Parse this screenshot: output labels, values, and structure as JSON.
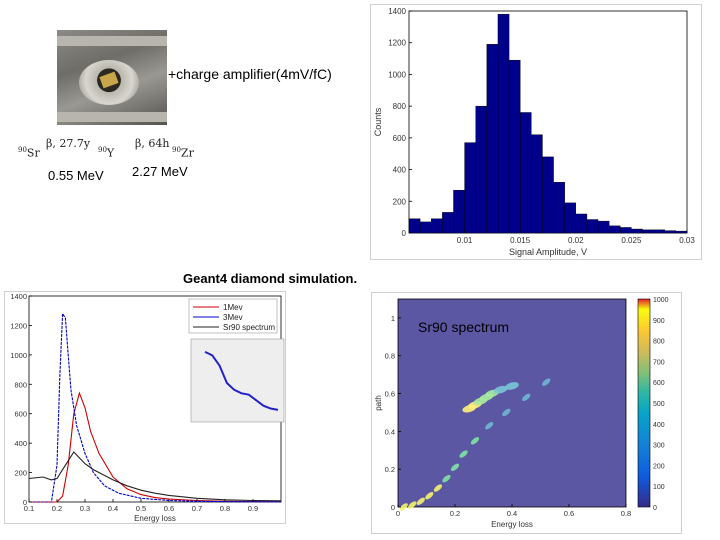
{
  "labels": {
    "amplifier": "+charge amplifier(4mV/fC)",
    "energy_1": "0.55 MeV",
    "energy_2": "2.27 MeV",
    "geant4": "Geant4 diamond simulation.",
    "sr90_overlay": "Sr90 spectrum"
  },
  "decay": {
    "sr": "Sr",
    "sr_mass": "90",
    "y": "Y",
    "y_mass": "90",
    "zr": "Zr",
    "zr_mass": "90",
    "beta1": "β, 27.7y",
    "beta2": "β, 64h"
  },
  "chart_data": [
    {
      "type": "bar",
      "title": "",
      "xlabel": "Signal Amplitude, V",
      "ylabel": "Counts",
      "xlim": [
        0.005,
        0.03
      ],
      "ylim": [
        0,
        1400
      ],
      "xticks": [
        0.01,
        0.015,
        0.02,
        0.025,
        0.03
      ],
      "xtick_labels": [
        "0.01",
        "0.015",
        "0.02",
        "0.025",
        "0.03"
      ],
      "yticks": [
        0,
        200,
        400,
        600,
        800,
        1000,
        1200,
        1400
      ],
      "bin_width": 0.001,
      "bin_start": 0.005,
      "values": [
        90,
        70,
        90,
        130,
        270,
        570,
        800,
        1190,
        1380,
        1090,
        760,
        620,
        480,
        320,
        190,
        120,
        85,
        75,
        45,
        35,
        25,
        20,
        20,
        15,
        12,
        10
      ],
      "color": "#00008b"
    },
    {
      "type": "line",
      "title": "",
      "xlabel": "Energy loss",
      "ylabel": "",
      "xlim": [
        0.1,
        1.0
      ],
      "ylim": [
        0,
        1400
      ],
      "xticks": [
        0.1,
        0.2,
        0.3,
        0.4,
        0.5,
        0.6,
        0.7,
        0.8,
        0.9
      ],
      "yticks": [
        0,
        200,
        400,
        600,
        800,
        1000,
        1200,
        1400
      ],
      "legend": [
        "1Mev",
        "3Mev",
        "Sr90 spectrum"
      ],
      "series": [
        {
          "name": "1Mev",
          "color": "#cc0000",
          "x": [
            0.1,
            0.2,
            0.22,
            0.24,
            0.26,
            0.28,
            0.3,
            0.32,
            0.35,
            0.4,
            0.45,
            0.5,
            0.55,
            0.6,
            0.7,
            0.8,
            0.9,
            1.0
          ],
          "y": [
            0,
            0,
            40,
            250,
            600,
            740,
            640,
            480,
            330,
            170,
            90,
            50,
            30,
            20,
            10,
            5,
            3,
            2
          ]
        },
        {
          "name": "3Mev",
          "color": "#0000cc",
          "x": [
            0.1,
            0.18,
            0.2,
            0.21,
            0.22,
            0.23,
            0.24,
            0.25,
            0.27,
            0.3,
            0.33,
            0.37,
            0.42,
            0.5,
            0.6,
            0.7,
            0.8,
            0.9,
            1.0
          ],
          "y": [
            0,
            0,
            250,
            850,
            1280,
            1250,
            1000,
            760,
            520,
            330,
            200,
            110,
            60,
            25,
            10,
            5,
            3,
            2,
            1
          ]
        },
        {
          "name": "Sr90 spectrum",
          "color": "#222222",
          "x": [
            0.1,
            0.15,
            0.18,
            0.2,
            0.22,
            0.24,
            0.26,
            0.28,
            0.3,
            0.33,
            0.36,
            0.4,
            0.45,
            0.5,
            0.55,
            0.6,
            0.7,
            0.8,
            0.9,
            1.0
          ],
          "y": [
            160,
            170,
            150,
            160,
            220,
            280,
            340,
            300,
            260,
            220,
            190,
            150,
            110,
            80,
            60,
            45,
            25,
            15,
            10,
            8
          ]
        }
      ],
      "inset": {
        "series": [
          {
            "name": "Sr90 spectrum",
            "x": [
              0,
              0.1,
              0.2,
              0.3,
              0.4,
              0.5,
              0.6,
              0.7,
              0.8,
              0.9,
              1.0
            ],
            "y": [
              0.9,
              0.85,
              0.7,
              0.45,
              0.35,
              0.3,
              0.28,
              0.2,
              0.12,
              0.08,
              0.06
            ]
          }
        ]
      }
    },
    {
      "type": "heatmap",
      "title": "",
      "xlabel": "Energy loss",
      "ylabel": "path",
      "xlim": [
        0,
        0.8
      ],
      "ylim": [
        0,
        1.1
      ],
      "xticks": [
        0,
        0.2,
        0.4,
        0.6,
        0.8
      ],
      "yticks": [
        0,
        0.2,
        0.4,
        0.6,
        0.8,
        1
      ],
      "colorbar_ticks": [
        0,
        100,
        200,
        300,
        400,
        500,
        600,
        700,
        800,
        900,
        1000
      ],
      "band": {
        "x": [
          0.02,
          0.05,
          0.08,
          0.11,
          0.14,
          0.17,
          0.2,
          0.23,
          0.27,
          0.32,
          0.38,
          0.45,
          0.52
        ],
        "y": [
          0.0,
          0.01,
          0.03,
          0.06,
          0.1,
          0.15,
          0.21,
          0.28,
          0.35,
          0.43,
          0.5,
          0.58,
          0.66
        ]
      },
      "cluster": {
        "x": [
          0.25,
          0.27,
          0.29,
          0.31,
          0.33,
          0.36,
          0.4
        ],
        "y": [
          0.52,
          0.54,
          0.56,
          0.58,
          0.6,
          0.62,
          0.64
        ]
      }
    }
  ]
}
